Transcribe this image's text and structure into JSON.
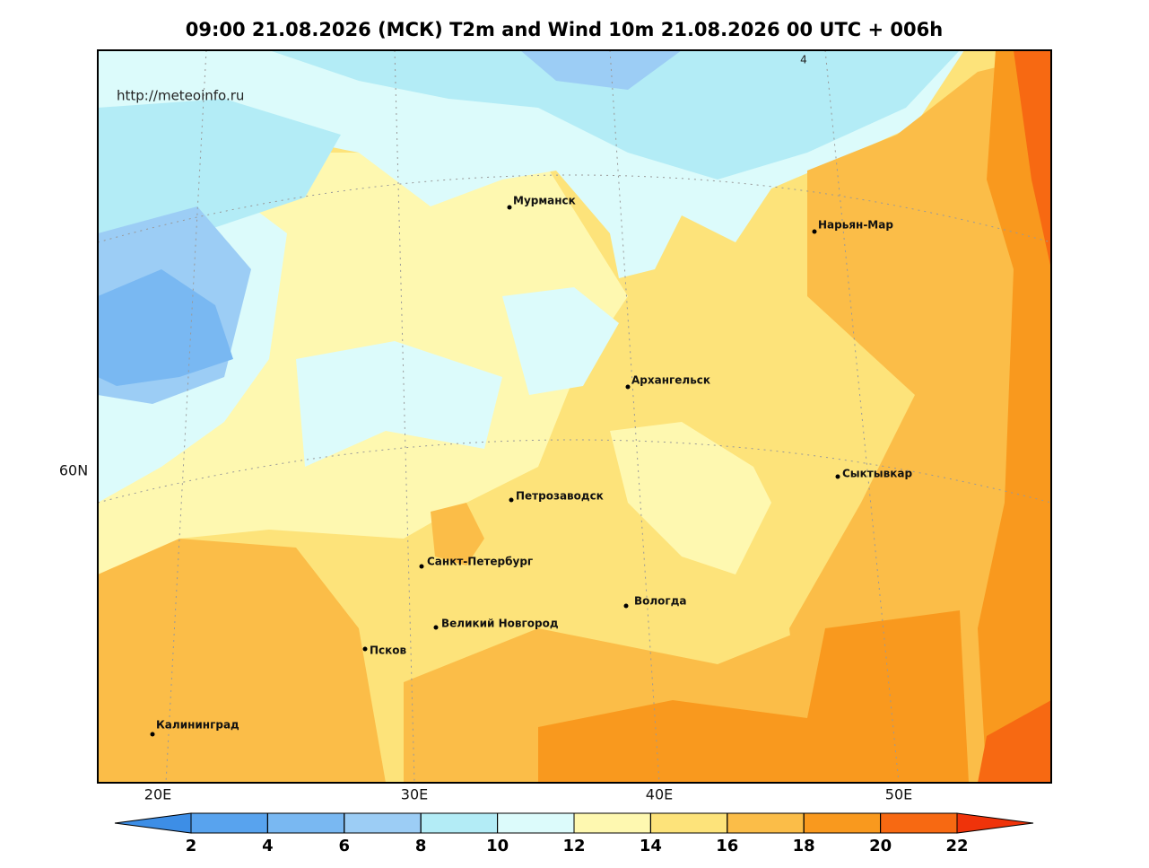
{
  "header": {
    "title": "09:00 21.08.2026 (МСК) T2m and Wind 10m 21.08.2026 00 UTC + 006h"
  },
  "map": {
    "watermark": "http://meteoinfo.ru",
    "contour_labels": [
      "4"
    ],
    "cities": [
      {
        "name": "Мурманск"
      },
      {
        "name": "Нарьян-Мар"
      },
      {
        "name": "Архангельск"
      },
      {
        "name": "Сыктывкар"
      },
      {
        "name": "Петрозаводск"
      },
      {
        "name": "Санкт-Петербург"
      },
      {
        "name": "Вологда"
      },
      {
        "name": "Великий Новгород"
      },
      {
        "name": "Псков"
      },
      {
        "name": "Калининград"
      }
    ],
    "lat_labels": [
      "60N"
    ],
    "lon_labels": [
      "20E",
      "30E",
      "40E",
      "50E"
    ]
  },
  "colorbar": {
    "ticks": [
      2,
      4,
      6,
      8,
      10,
      12,
      14,
      16,
      18,
      20,
      22
    ],
    "colors": [
      "#3d8ee6",
      "#58a3ee",
      "#79b8f2",
      "#9ccdf5",
      "#b3ecf6",
      "#dcfbfb",
      "#fef8b0",
      "#fde37a",
      "#fbbd48",
      "#f9991e",
      "#f76912",
      "#ef330a"
    ]
  }
}
